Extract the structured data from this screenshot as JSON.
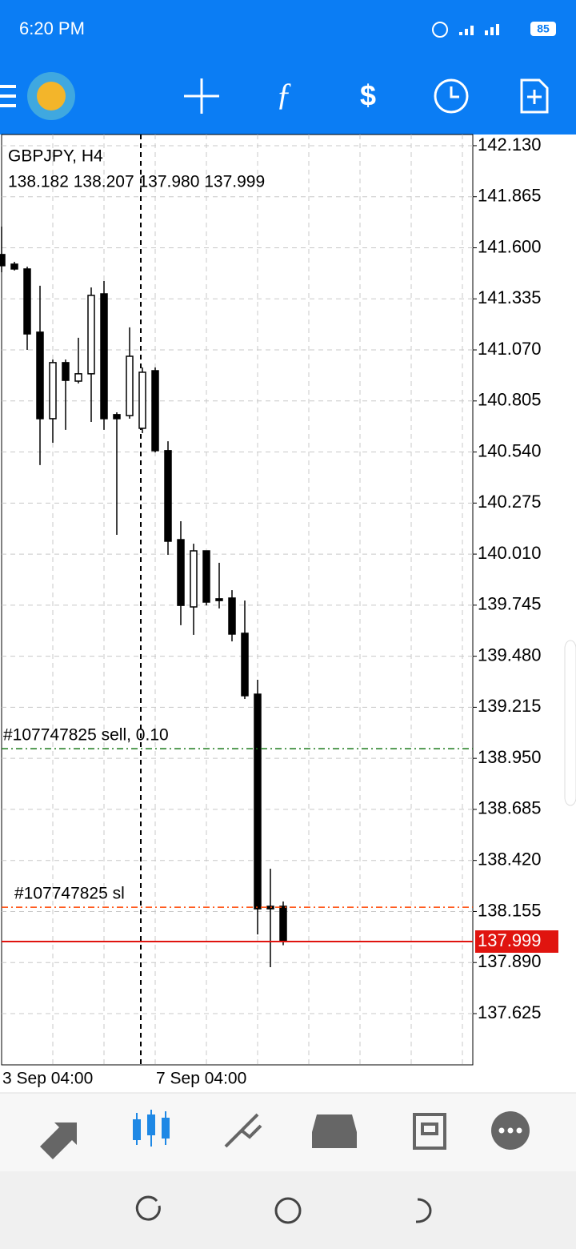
{
  "status_bar": {
    "time": "6:20 PM",
    "battery": "85"
  },
  "chart_data": {
    "type": "candlestick",
    "title": "GBPJPY, H4",
    "ohlc_text": "138.182 138.207 137.980 137.999",
    "categories": [
      "3 Sep 04:00",
      null,
      null,
      null,
      null,
      null,
      null,
      null,
      null,
      null,
      null,
      null,
      "7 Sep 04:00",
      null,
      null,
      null,
      null,
      null,
      null,
      null,
      null,
      null,
      null
    ],
    "open": [
      141.565,
      141.515,
      141.49,
      141.162,
      140.713,
      141.004,
      140.908,
      140.946,
      141.361,
      140.734,
      140.729,
      140.663,
      140.962,
      140.547,
      140.085,
      139.736,
      140.027,
      139.778,
      139.782,
      139.599,
      139.283,
      138.182,
      138.182
    ],
    "high": [
      141.71,
      141.527,
      141.502,
      141.403,
      141.02,
      141.02,
      141.133,
      141.394,
      141.428,
      140.746,
      141.187,
      140.979,
      140.979,
      140.596,
      140.181,
      140.064,
      140.027,
      139.965,
      139.823,
      139.769,
      139.358,
      138.377,
      138.207
    ],
    "low": [
      141.473,
      141.482,
      141.07,
      140.472,
      140.588,
      140.655,
      140.896,
      140.696,
      140.655,
      140.11,
      140.713,
      140.638,
      140.538,
      140.006,
      139.641,
      139.591,
      139.744,
      139.728,
      139.557,
      139.258,
      138.036,
      137.866,
      137.98
    ],
    "close": [
      141.507,
      141.49,
      141.153,
      140.713,
      141.004,
      140.912,
      140.946,
      141.353,
      140.713,
      140.713,
      141.037,
      140.954,
      140.547,
      140.077,
      139.744,
      140.027,
      139.761,
      139.769,
      139.595,
      139.275,
      138.169,
      138.169,
      137.999
    ],
    "up_color": "#ffffff",
    "down_color": "#000000",
    "ylim": [
      137.359,
      142.188
    ],
    "yticks": [
      {
        "value": 142.13,
        "label": "142.130"
      },
      141.865,
      {
        "value": 141.6,
        "label": "141.600"
      },
      141.335,
      {
        "value": 141.07,
        "label": "141.070"
      },
      140.805,
      {
        "value": 140.54,
        "label": "140.540"
      },
      140.275,
      {
        "value": 140.01,
        "label": "140.010"
      },
      139.745,
      {
        "value": 139.48,
        "label": "139.480"
      },
      139.215,
      {
        "value": 138.95,
        "label": "138.950"
      },
      138.685,
      {
        "value": 138.42,
        "label": "138.420"
      },
      138.155,
      {
        "value": 137.89,
        "label": "137.890"
      },
      137.625
    ],
    "grid": true,
    "orders": [
      {
        "label": "#107747825 sell, 0.10",
        "price": 139.0,
        "color": "#1a7a1a"
      },
      {
        "label": "#107747825 sl",
        "price": 138.177,
        "color": "#ff4500"
      }
    ],
    "bid": 137.999,
    "bid_color": "#e0140f"
  }
}
